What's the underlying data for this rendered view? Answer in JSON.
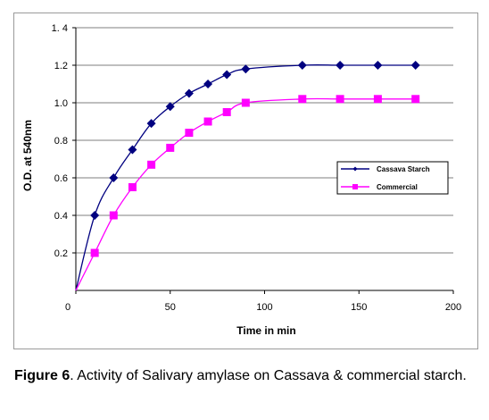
{
  "chart_data": {
    "type": "line",
    "xlabel": "Time in min",
    "ylabel": "O.D. at 540nm",
    "xlim": [
      0,
      200
    ],
    "ylim": [
      0,
      1.4
    ],
    "x_ticks": [
      "0",
      "50",
      "100",
      "150",
      "200"
    ],
    "y_ticks": [
      "0.2",
      "0.4",
      "0.6",
      "0.8",
      "1.0",
      "1.2",
      "1. 4"
    ],
    "grid": "horizontal",
    "legend_position": "right",
    "series": [
      {
        "name": "Cassava Starch",
        "color": "#000080",
        "marker": "diamond",
        "x": [
          0,
          10,
          20,
          30,
          40,
          50,
          60,
          70,
          80,
          90,
          120,
          140,
          160,
          180
        ],
        "y": [
          0,
          0.4,
          0.6,
          0.75,
          0.89,
          0.98,
          1.05,
          1.1,
          1.15,
          1.18,
          1.2,
          1.2,
          1.2,
          1.2
        ]
      },
      {
        "name": "Commercial",
        "color": "#ff00ff",
        "marker": "square",
        "x": [
          0,
          10,
          20,
          30,
          40,
          50,
          60,
          70,
          80,
          90,
          120,
          140,
          160,
          180
        ],
        "y": [
          0,
          0.2,
          0.4,
          0.55,
          0.67,
          0.76,
          0.84,
          0.9,
          0.95,
          1.0,
          1.02,
          1.02,
          1.02,
          1.02
        ]
      }
    ]
  },
  "caption": {
    "label": "Figure 6",
    "text": ". Activity of Salivary amylase on Cassava & commercial starch."
  }
}
